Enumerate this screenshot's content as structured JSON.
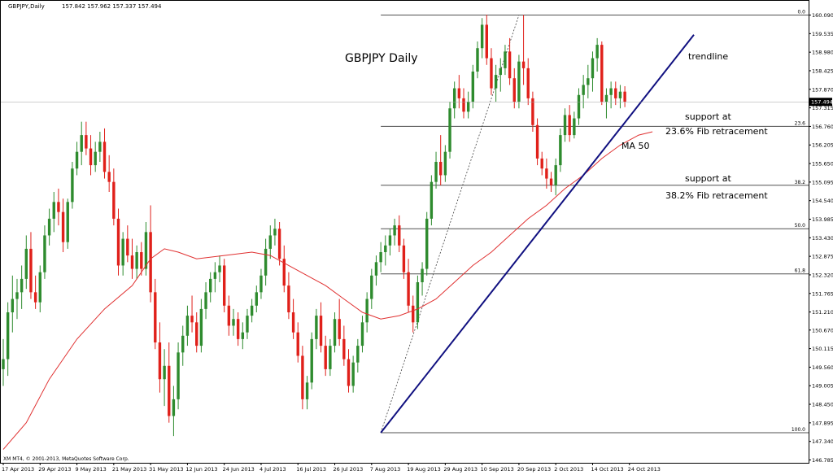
{
  "header": {
    "symbol": "GBPJPY,Daily",
    "ohlc": "157.842 157.962 157.337 157.494"
  },
  "footer": {
    "copyright": "XM MT4, © 2001-2013, MetaQuotes Software Corp."
  },
  "annotations": {
    "title": "GBPJPY Daily",
    "trendline": "trendline",
    "support1_line1": "support at",
    "support1_line2": "23.6% Fib retracement",
    "support2_line1": "support at",
    "support2_line2": "38.2% Fib retracement",
    "ma": "MA 50"
  },
  "colors": {
    "bull": "#2e8b2e",
    "bear": "#e0201a",
    "ma": "#e03030",
    "trendline": "#101080",
    "fib": "#505050",
    "grid_label": "#000000"
  },
  "chart_data": {
    "type": "candlestick",
    "symbol": "GBPJPY",
    "timeframe": "Daily",
    "last_price": 157.494,
    "current_price_label": "157.494",
    "ylim": [
      146.7,
      160.2
    ],
    "y_ticks": [
      "160.090",
      "159.535",
      "158.980",
      "158.425",
      "157.870",
      "157.315",
      "156.760",
      "156.205",
      "155.650",
      "155.095",
      "154.540",
      "153.985",
      "153.430",
      "152.875",
      "152.320",
      "151.765",
      "151.210",
      "150.670",
      "150.115",
      "149.560",
      "149.005",
      "148.450",
      "147.895",
      "147.340",
      "146.785"
    ],
    "x_ticks": [
      "17 Apr 2013",
      "29 Apr 2013",
      "9 May 2013",
      "21 May 2013",
      "31 May 2013",
      "12 Jun 2013",
      "24 Jun 2013",
      "4 Jul 2013",
      "16 Jul 2013",
      "26 Jul 2013",
      "7 Aug 2013",
      "19 Aug 2013",
      "29 Aug 2013",
      "10 Sep 2013",
      "20 Sep 2013",
      "2 Oct 2013",
      "14 Oct 2013",
      "24 Oct 2013"
    ],
    "x_tick_index": [
      0,
      8,
      16,
      24,
      32,
      40,
      48,
      56,
      64,
      72,
      80,
      88,
      96,
      104,
      112,
      120,
      128,
      136
    ],
    "candles": [
      [
        149.5,
        150.4,
        149.0,
        149.8
      ],
      [
        149.8,
        151.5,
        149.3,
        151.2
      ],
      [
        151.2,
        152.3,
        150.6,
        151.6
      ],
      [
        151.6,
        152.2,
        151.0,
        151.8
      ],
      [
        151.8,
        152.6,
        151.3,
        152.2
      ],
      [
        152.2,
        153.5,
        151.9,
        153.1
      ],
      [
        153.1,
        153.6,
        151.6,
        151.8
      ],
      [
        151.8,
        152.3,
        151.3,
        151.5
      ],
      [
        151.5,
        152.6,
        151.2,
        152.4
      ],
      [
        152.4,
        153.8,
        152.2,
        153.5
      ],
      [
        153.5,
        154.3,
        153.2,
        154.0
      ],
      [
        154.0,
        154.8,
        153.6,
        154.5
      ],
      [
        154.5,
        154.9,
        153.8,
        154.2
      ],
      [
        154.2,
        154.6,
        153.0,
        153.3
      ],
      [
        153.3,
        154.6,
        153.1,
        154.5
      ],
      [
        154.5,
        155.7,
        154.3,
        155.5
      ],
      [
        155.5,
        156.3,
        155.3,
        156.0
      ],
      [
        156.0,
        156.9,
        155.6,
        156.5
      ],
      [
        156.5,
        156.9,
        155.9,
        156.1
      ],
      [
        156.1,
        156.5,
        155.3,
        155.6
      ],
      [
        155.6,
        156.3,
        155.4,
        156.0
      ],
      [
        156.0,
        156.6,
        155.7,
        156.3
      ],
      [
        156.3,
        156.7,
        155.2,
        155.4
      ],
      [
        155.4,
        155.9,
        154.8,
        155.1
      ],
      [
        155.1,
        155.5,
        153.8,
        154.0
      ],
      [
        154.0,
        154.3,
        152.3,
        152.6
      ],
      [
        152.6,
        153.6,
        152.3,
        153.4
      ],
      [
        153.4,
        153.8,
        152.7,
        152.9
      ],
      [
        152.9,
        153.4,
        152.2,
        152.5
      ],
      [
        152.5,
        153.2,
        152.2,
        153.0
      ],
      [
        153.0,
        153.3,
        152.3,
        152.5
      ],
      [
        152.5,
        153.9,
        152.3,
        153.6
      ],
      [
        153.6,
        154.4,
        151.5,
        151.8
      ],
      [
        151.8,
        152.2,
        150.1,
        150.3
      ],
      [
        150.3,
        150.9,
        148.8,
        149.2
      ],
      [
        149.2,
        150.1,
        148.4,
        149.6
      ],
      [
        149.6,
        150.3,
        147.9,
        148.1
      ],
      [
        148.1,
        149.0,
        147.5,
        148.6
      ],
      [
        148.6,
        150.3,
        148.3,
        150.0
      ],
      [
        150.0,
        150.8,
        149.6,
        150.5
      ],
      [
        150.5,
        151.4,
        150.2,
        151.1
      ],
      [
        151.1,
        151.7,
        150.6,
        150.9
      ],
      [
        150.9,
        151.2,
        150.0,
        150.2
      ],
      [
        150.2,
        151.6,
        150.0,
        151.3
      ],
      [
        151.3,
        152.1,
        151.0,
        151.8
      ],
      [
        151.8,
        152.4,
        151.5,
        152.2
      ],
      [
        152.2,
        152.7,
        151.8,
        152.4
      ],
      [
        152.4,
        152.9,
        152.1,
        152.6
      ],
      [
        152.6,
        152.8,
        151.2,
        151.4
      ],
      [
        151.4,
        151.7,
        150.5,
        150.8
      ],
      [
        150.8,
        151.3,
        150.5,
        151.0
      ],
      [
        151.0,
        151.2,
        150.2,
        150.4
      ],
      [
        150.4,
        150.9,
        150.1,
        150.6
      ],
      [
        150.6,
        151.3,
        150.4,
        151.1
      ],
      [
        151.1,
        151.6,
        150.9,
        151.4
      ],
      [
        151.4,
        152.0,
        151.2,
        151.8
      ],
      [
        151.8,
        152.5,
        151.6,
        152.3
      ],
      [
        152.3,
        153.4,
        152.0,
        153.1
      ],
      [
        153.1,
        153.8,
        152.8,
        153.5
      ],
      [
        153.5,
        154.0,
        153.2,
        153.7
      ],
      [
        153.7,
        153.9,
        152.6,
        152.8
      ],
      [
        152.8,
        153.2,
        151.8,
        152.0
      ],
      [
        152.0,
        152.4,
        151.0,
        151.2
      ],
      [
        151.2,
        151.6,
        150.4,
        150.6
      ],
      [
        150.6,
        150.9,
        149.7,
        149.9
      ],
      [
        149.9,
        150.2,
        148.3,
        148.6
      ],
      [
        148.6,
        149.3,
        148.3,
        149.1
      ],
      [
        149.1,
        150.6,
        148.9,
        150.4
      ],
      [
        150.4,
        151.3,
        150.1,
        151.1
      ],
      [
        151.1,
        151.5,
        150.0,
        150.2
      ],
      [
        150.2,
        150.5,
        149.3,
        149.5
      ],
      [
        149.5,
        150.4,
        149.3,
        150.2
      ],
      [
        150.2,
        151.2,
        150.0,
        151.0
      ],
      [
        151.0,
        151.6,
        150.2,
        150.4
      ],
      [
        150.4,
        150.8,
        149.6,
        149.8
      ],
      [
        149.8,
        150.1,
        148.8,
        149.0
      ],
      [
        149.0,
        149.9,
        148.8,
        149.7
      ],
      [
        149.7,
        150.4,
        149.4,
        150.2
      ],
      [
        150.2,
        151.1,
        150.0,
        150.9
      ],
      [
        150.9,
        151.8,
        150.6,
        151.6
      ],
      [
        151.6,
        152.5,
        151.3,
        152.3
      ],
      [
        152.3,
        152.9,
        152.0,
        152.7
      ],
      [
        152.7,
        153.3,
        152.4,
        153.0
      ],
      [
        153.0,
        153.5,
        152.6,
        153.2
      ],
      [
        153.2,
        153.7,
        152.9,
        153.5
      ],
      [
        153.5,
        154.0,
        153.2,
        153.8
      ],
      [
        153.8,
        154.1,
        153.0,
        153.2
      ],
      [
        153.2,
        153.4,
        152.2,
        152.4
      ],
      [
        152.4,
        152.8,
        151.2,
        151.4
      ],
      [
        151.4,
        151.7,
        150.6,
        150.9
      ],
      [
        150.9,
        152.3,
        150.7,
        152.1
      ],
      [
        152.1,
        152.7,
        151.7,
        152.5
      ],
      [
        152.5,
        154.2,
        152.3,
        154.0
      ],
      [
        154.0,
        155.3,
        153.8,
        155.1
      ],
      [
        155.1,
        156.0,
        154.9,
        155.7
      ],
      [
        155.7,
        156.5,
        155.0,
        155.3
      ],
      [
        155.3,
        156.2,
        155.1,
        156.0
      ],
      [
        156.0,
        157.5,
        155.8,
        157.3
      ],
      [
        157.3,
        158.1,
        157.0,
        157.9
      ],
      [
        157.9,
        158.3,
        157.3,
        157.6
      ],
      [
        157.6,
        157.9,
        157.0,
        157.2
      ],
      [
        157.2,
        157.8,
        157.0,
        157.5
      ],
      [
        157.5,
        158.6,
        157.3,
        158.4
      ],
      [
        158.4,
        159.3,
        158.2,
        159.1
      ],
      [
        159.1,
        160.0,
        158.8,
        159.8
      ],
      [
        159.8,
        160.1,
        158.6,
        158.8
      ],
      [
        158.8,
        159.1,
        157.7,
        157.9
      ],
      [
        157.9,
        158.6,
        157.5,
        158.3
      ],
      [
        158.3,
        158.8,
        157.8,
        158.5
      ],
      [
        158.5,
        159.2,
        158.3,
        159.0
      ],
      [
        159.0,
        159.4,
        158.0,
        158.2
      ],
      [
        158.2,
        158.5,
        157.3,
        157.5
      ],
      [
        157.5,
        158.9,
        157.3,
        158.7
      ],
      [
        158.7,
        160.09,
        158.0,
        158.5
      ],
      [
        158.5,
        158.8,
        157.4,
        157.6
      ],
      [
        157.6,
        157.8,
        156.6,
        156.8
      ],
      [
        156.8,
        157.0,
        155.6,
        155.8
      ],
      [
        155.8,
        156.0,
        155.3,
        155.5
      ],
      [
        155.5,
        155.8,
        154.9,
        155.2
      ],
      [
        155.2,
        155.4,
        154.8,
        155.0
      ],
      [
        155.0,
        155.8,
        154.7,
        155.6
      ],
      [
        155.6,
        156.7,
        155.4,
        156.5
      ],
      [
        156.5,
        157.3,
        156.3,
        157.1
      ],
      [
        157.1,
        157.4,
        156.3,
        156.5
      ],
      [
        156.5,
        157.2,
        156.4,
        157.0
      ],
      [
        157.0,
        157.9,
        156.8,
        157.7
      ],
      [
        157.7,
        158.3,
        157.3,
        158.0
      ],
      [
        158.0,
        158.6,
        157.6,
        158.2
      ],
      [
        158.2,
        159.0,
        157.8,
        158.8
      ],
      [
        158.8,
        159.4,
        158.4,
        159.2
      ],
      [
        159.2,
        159.3,
        157.4,
        157.5
      ],
      [
        157.5,
        157.9,
        157.0,
        157.7
      ],
      [
        157.7,
        158.1,
        157.3,
        157.9
      ],
      [
        157.9,
        158.1,
        157.4,
        157.6
      ],
      [
        157.6,
        158.0,
        157.3,
        157.8
      ],
      [
        157.8,
        157.962,
        157.337,
        157.494
      ]
    ],
    "ma50": [
      [
        0,
        147.1
      ],
      [
        5,
        147.9
      ],
      [
        10,
        149.2
      ],
      [
        16,
        150.4
      ],
      [
        22,
        151.3
      ],
      [
        28,
        152.0
      ],
      [
        32,
        152.8
      ],
      [
        35,
        153.1
      ],
      [
        38,
        153.0
      ],
      [
        42,
        152.8
      ],
      [
        48,
        152.9
      ],
      [
        54,
        153.0
      ],
      [
        58,
        152.9
      ],
      [
        62,
        152.6
      ],
      [
        66,
        152.3
      ],
      [
        70,
        152.0
      ],
      [
        74,
        151.6
      ],
      [
        78,
        151.2
      ],
      [
        82,
        151.0
      ],
      [
        86,
        151.1
      ],
      [
        90,
        151.3
      ],
      [
        94,
        151.6
      ],
      [
        98,
        152.1
      ],
      [
        102,
        152.6
      ],
      [
        106,
        153.0
      ],
      [
        110,
        153.5
      ],
      [
        114,
        154.0
      ],
      [
        118,
        154.4
      ],
      [
        122,
        154.9
      ],
      [
        126,
        155.3
      ],
      [
        130,
        155.8
      ],
      [
        134,
        156.2
      ],
      [
        138,
        156.5
      ],
      [
        141,
        156.6
      ]
    ],
    "fib_levels": [
      {
        "label": "0.0",
        "price": 160.09
      },
      {
        "label": "23.6",
        "price": 156.76
      },
      {
        "label": "38.2",
        "price": 155.0
      },
      {
        "label": "50.0",
        "price": 153.7
      },
      {
        "label": "61.8",
        "price": 152.35
      },
      {
        "label": "100.0",
        "price": 147.6
      }
    ],
    "fib_start_index": 82,
    "trendline": {
      "x0": 82,
      "y0": 147.6,
      "x1": 150,
      "y1": 159.5
    },
    "fib_diagonal": {
      "x0": 82,
      "y0": 147.6,
      "x1": 112,
      "y1": 160.09
    }
  }
}
